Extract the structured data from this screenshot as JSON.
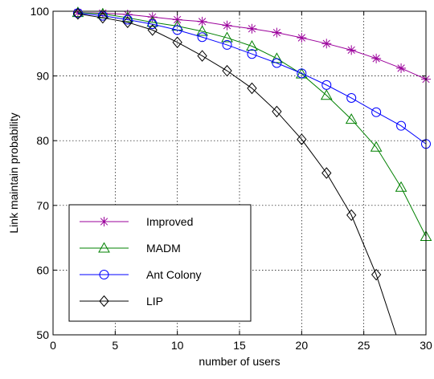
{
  "chart_data": {
    "type": "line",
    "xlabel": "number of users",
    "ylabel": "Link maintain probability",
    "xlim": [
      0,
      30
    ],
    "ylim": [
      50,
      100
    ],
    "xticks": [
      "0",
      "5",
      "10",
      "15",
      "20",
      "25",
      "30"
    ],
    "yticks": [
      "50",
      "60",
      "70",
      "80",
      "90",
      "100"
    ],
    "grid": true,
    "legend_position": "lower-left",
    "series": [
      {
        "name": "Improved",
        "color": "#9b009b",
        "marker": "asterisk",
        "x": [
          2,
          4,
          6,
          8,
          10,
          12,
          14,
          16,
          18,
          20,
          22,
          24,
          26,
          28,
          30
        ],
        "y": [
          99.8,
          99.7,
          99.5,
          99.1,
          98.7,
          98.4,
          97.8,
          97.3,
          96.7,
          95.9,
          95.0,
          94.0,
          92.7,
          91.2,
          89.5
        ]
      },
      {
        "name": "MADM",
        "color": "#008000",
        "marker": "triangle",
        "x": [
          2,
          4,
          6,
          8,
          10,
          12,
          14,
          16,
          18,
          20,
          22,
          24,
          26,
          28,
          30
        ],
        "y": [
          99.8,
          99.6,
          99.0,
          98.3,
          97.7,
          96.9,
          95.9,
          94.6,
          92.7,
          90.3,
          87.0,
          83.3,
          79.0,
          72.8,
          65.2
        ]
      },
      {
        "name": "Ant Colony",
        "color": "#0000ff",
        "marker": "circle",
        "x": [
          2,
          4,
          6,
          8,
          10,
          12,
          14,
          16,
          18,
          20,
          22,
          24,
          26,
          28,
          30
        ],
        "y": [
          99.7,
          99.3,
          98.7,
          98.0,
          97.1,
          96.0,
          94.8,
          93.4,
          92.0,
          90.4,
          88.6,
          86.6,
          84.4,
          82.3,
          79.5
        ]
      },
      {
        "name": "LIP",
        "color": "#000000",
        "marker": "diamond",
        "x": [
          2,
          4,
          6,
          8,
          10,
          12,
          14,
          16,
          18,
          20,
          22,
          24,
          26,
          27.6
        ],
        "y": [
          99.6,
          99.0,
          98.3,
          97.1,
          95.2,
          93.1,
          90.8,
          88.1,
          84.5,
          80.2,
          75.0,
          68.5,
          59.3,
          50.0
        ],
        "marker_count": 13
      }
    ]
  }
}
